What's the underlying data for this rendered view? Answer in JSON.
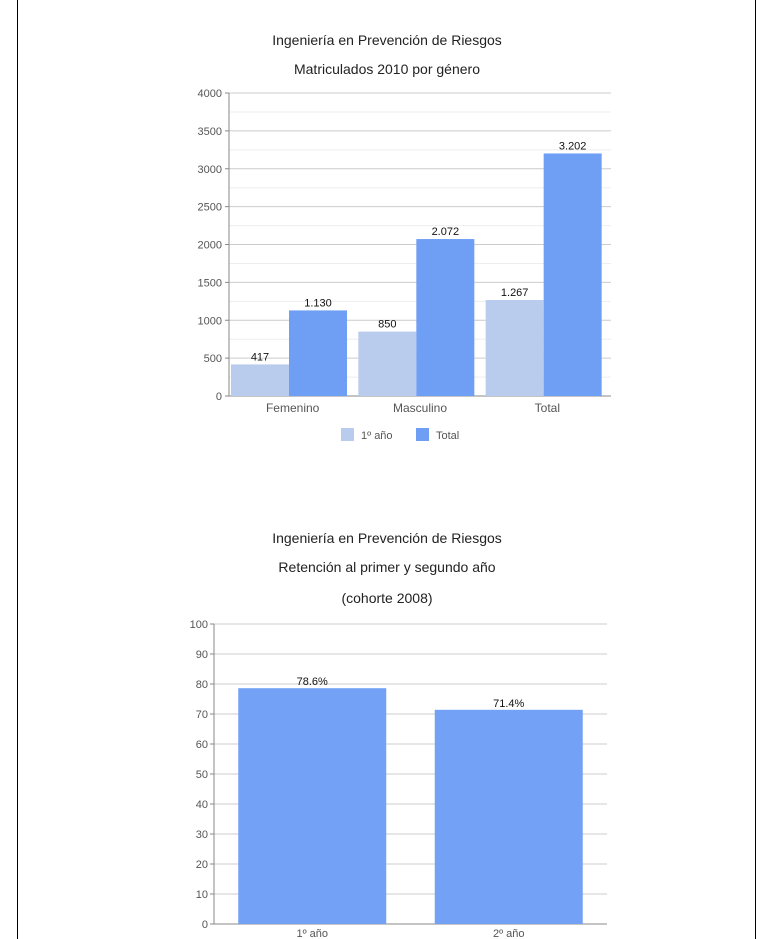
{
  "chart_data": [
    {
      "type": "bar",
      "title": "Ingeniería en Prevención de Riesgos",
      "subtitle": "Matriculados 2010 por género",
      "categories": [
        "Femenino",
        "Masculino",
        "Total"
      ],
      "series": [
        {
          "name": "1º año",
          "values": [
            417,
            850,
            1267
          ],
          "labels": [
            "417",
            "850",
            "1.267"
          ],
          "color": "#b9ccee"
        },
        {
          "name": "Total",
          "values": [
            1130,
            2072,
            3202
          ],
          "labels": [
            "1.130",
            "2.072",
            "3.202"
          ],
          "color": "#6f9ef5"
        }
      ],
      "yticks": [
        "0",
        "500",
        "1000",
        "1500",
        "2000",
        "2500",
        "3000",
        "3500",
        "4000"
      ],
      "ylim": [
        0,
        4000
      ],
      "grid": true,
      "legend": "bottom"
    },
    {
      "type": "bar",
      "title": "Ingeniería en Prevención de Riesgos",
      "subtitle": "Retención al primer y segundo año",
      "subtitle2": "(cohorte 2008)",
      "categories": [
        "1º año",
        "2º año"
      ],
      "series": [
        {
          "values": [
            78.6,
            71.4
          ],
          "labels": [
            "78.6%",
            "71.4%"
          ],
          "color": "#73a1f6"
        }
      ],
      "yticks": [
        "0",
        "10",
        "20",
        "30",
        "40",
        "50",
        "60",
        "70",
        "80",
        "90",
        "100"
      ],
      "ylim": [
        0,
        100
      ],
      "grid": true
    }
  ]
}
